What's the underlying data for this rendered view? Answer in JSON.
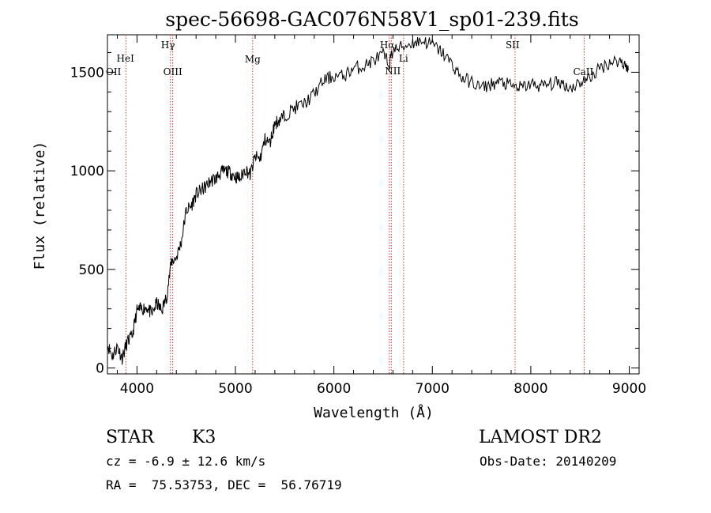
{
  "chart_data": {
    "type": "line",
    "title": "spec-56698-GAC076N58V1_sp01-239.fits",
    "xlabel": "Wavelength (Å)",
    "ylabel": "Flux (relative)",
    "xlim": [
      3700,
      9100
    ],
    "ylim": [
      -30,
      1690
    ],
    "x_ticks": [
      4000,
      5000,
      6000,
      7000,
      8000,
      9000
    ],
    "y_ticks": [
      0,
      500,
      1000,
      1500
    ],
    "grid": false,
    "series": [
      {
        "x": [
          3700,
          3750,
          3800,
          3850,
          3900,
          3950,
          4000,
          4050,
          4100,
          4150,
          4200,
          4250,
          4300,
          4350,
          4400,
          4450,
          4500,
          4550,
          4600,
          4650,
          4700,
          4750,
          4800,
          4850,
          4900,
          4950,
          5000,
          5050,
          5100,
          5150,
          5200,
          5250,
          5300,
          5350,
          5400,
          5450,
          5500,
          5600,
          5700,
          5800,
          5900,
          6000,
          6100,
          6200,
          6300,
          6400,
          6500,
          6560,
          6600,
          6700,
          6800,
          6900,
          7000,
          7100,
          7200,
          7300,
          7400,
          7500,
          7600,
          7700,
          7800,
          7900,
          8000,
          8100,
          8200,
          8300,
          8400,
          8500,
          8600,
          8700,
          8800,
          8900,
          8960,
          8990
        ],
        "y": [
          120,
          60,
          110,
          50,
          130,
          160,
          290,
          300,
          310,
          270,
          330,
          290,
          360,
          540,
          560,
          640,
          800,
          820,
          880,
          900,
          920,
          950,
          960,
          990,
          1000,
          990,
          970,
          960,
          1010,
          980,
          1070,
          1060,
          1160,
          1140,
          1240,
          1260,
          1280,
          1320,
          1340,
          1390,
          1460,
          1480,
          1480,
          1520,
          1530,
          1560,
          1590,
          1540,
          1610,
          1630,
          1650,
          1660,
          1640,
          1600,
          1540,
          1470,
          1450,
          1420,
          1440,
          1450,
          1430,
          1420,
          1440,
          1430,
          1440,
          1450,
          1420,
          1450,
          1470,
          1520,
          1550,
          1560,
          1540,
          1510
        ]
      }
    ],
    "lines": [
      {
        "label": "HeI",
        "x": 3889
      },
      {
        "label": "OIII",
        "x": 4363
      },
      {
        "label": "Hγ",
        "x": 4340
      },
      {
        "label": "Mg",
        "x": 5175
      },
      {
        "label": "Hα",
        "x": 6563
      },
      {
        "label": "NII",
        "x": 6583
      },
      {
        "label": "Li",
        "x": 6708
      },
      {
        "label": "SII",
        "x": 7840
      },
      {
        "label": "CaII",
        "x": 8542
      }
    ],
    "line_color": "#cc3333",
    "extra_labels": [
      "OII"
    ]
  },
  "info": {
    "class": "STAR",
    "subclass": "K3",
    "survey": "LAMOST DR2",
    "cz": "cz = -6.9 ± 12.6 km/s",
    "obs_date": "Obs-Date: 20140209",
    "radec": "RA =  75.53753, DEC =  56.76719"
  }
}
